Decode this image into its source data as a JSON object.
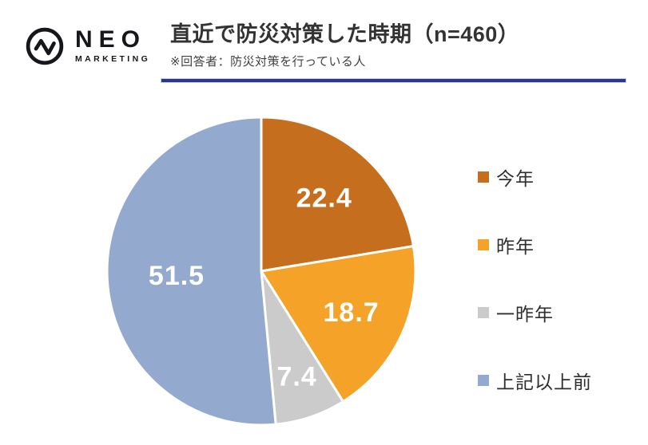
{
  "brand": {
    "name": "NEO",
    "sub": "MARKETING"
  },
  "header": {
    "title": "直近で防災対策した時期（n=460）",
    "subtitle": "※回答者：防災対策を行っている人"
  },
  "chart_data": {
    "type": "pie",
    "title": "直近で防災対策した時期（n=460）",
    "sample_size": 460,
    "respondents_note": "※回答者：防災対策を行っている人",
    "categories": [
      "今年",
      "昨年",
      "一昨年",
      "上記以上前"
    ],
    "values": [
      22.4,
      18.7,
      7.4,
      51.5
    ],
    "unit": "%",
    "colors": [
      "#C56F1E",
      "#F5A228",
      "#CBCBCB",
      "#93A9CE"
    ],
    "value_label_color": "#FFFFFF",
    "slice_border_color": "#FFFFFF",
    "start_angle_deg": 0,
    "direction": "clockwise",
    "legend_position": "right"
  },
  "theme": {
    "divider_color": "#2B3690",
    "title_color": "#333333",
    "legend_text_color": "#2E2E2E",
    "logo_color": "#15171B",
    "background_color": "#FFFFFF"
  }
}
